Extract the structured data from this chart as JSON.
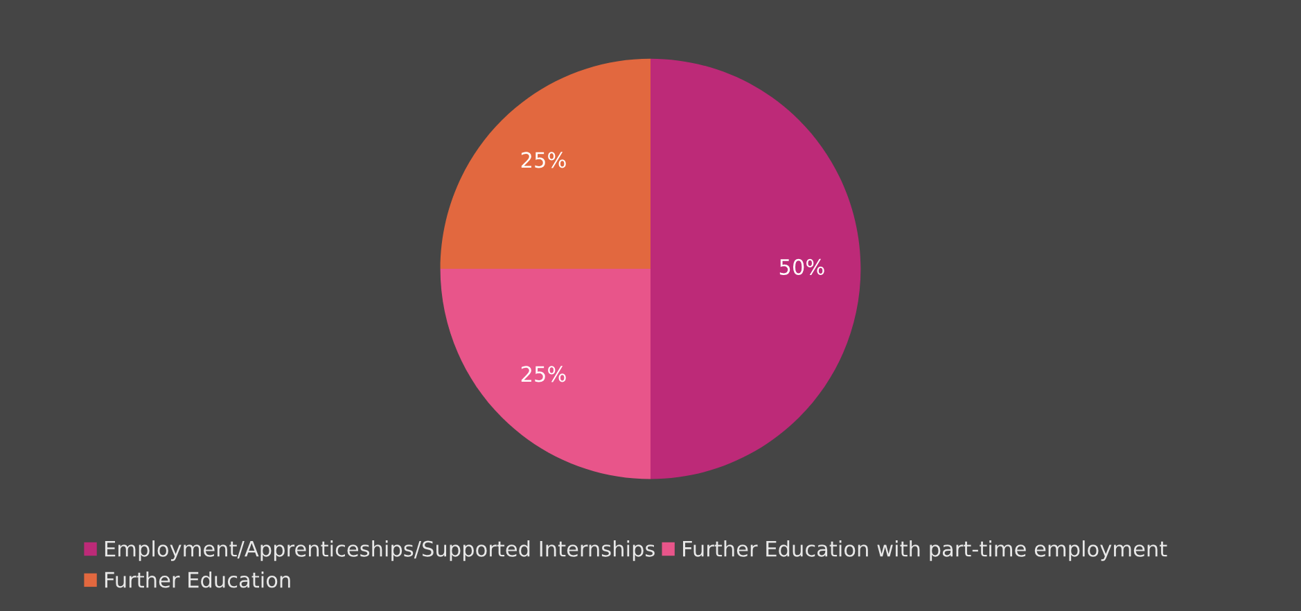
{
  "chart_data": {
    "type": "pie",
    "categories": [
      "Employment/Apprenticeships/Supported Internships",
      "Further Education with part-time employment",
      "Further Education"
    ],
    "values": [
      50,
      25,
      25
    ],
    "value_labels": [
      "50%",
      "25%",
      "25%"
    ],
    "colors": [
      "#bd2a78",
      "#e8558a",
      "#e2683f"
    ],
    "legend": "bottom"
  }
}
